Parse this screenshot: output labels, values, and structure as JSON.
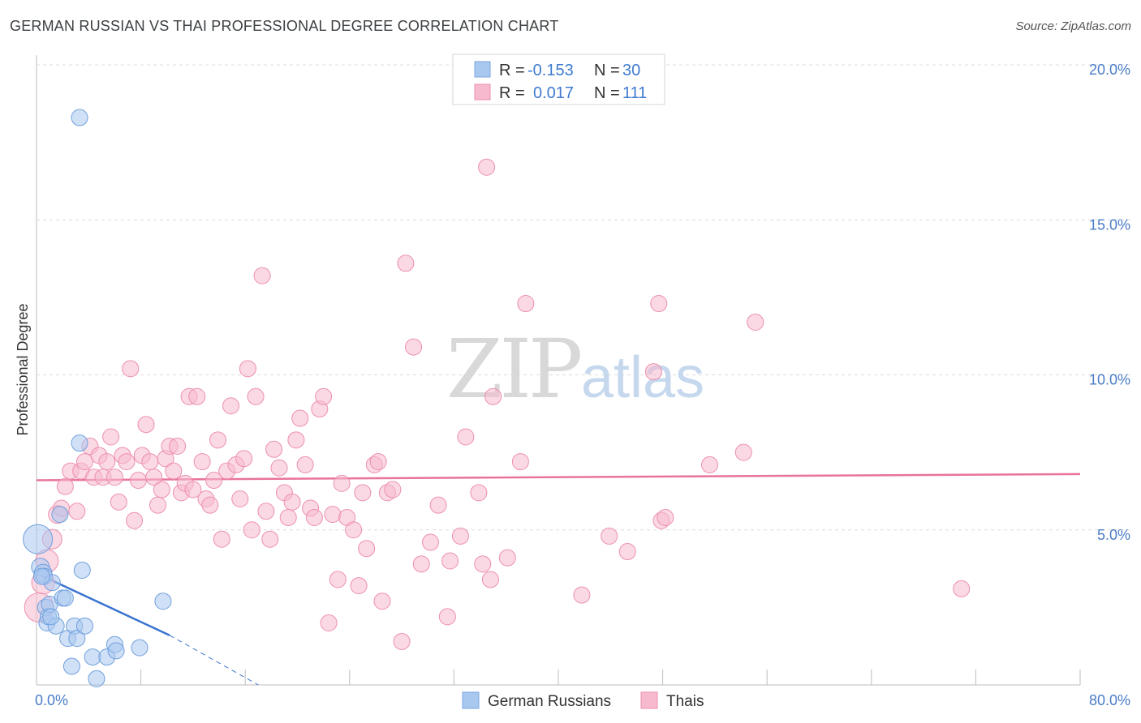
{
  "header": {
    "title": "GERMAN RUSSIAN VS THAI PROFESSIONAL DEGREE CORRELATION CHART",
    "source": "Source: ZipAtlas.com"
  },
  "watermark": {
    "zip": "ZIP",
    "atlas": "atlas"
  },
  "legend": {
    "rows": [
      {
        "r_label": "R =",
        "r_value": "-0.153",
        "n_label": "N =",
        "n_value": "30",
        "color": "#a9c8f0",
        "border": "#7aa7e0"
      },
      {
        "r_label": "R =",
        "r_value": "0.017",
        "n_label": "N =",
        "n_value": "111",
        "color": "#f7b9cd",
        "border": "#ec8fae"
      }
    ]
  },
  "bottom_legend": {
    "items": [
      {
        "label": "German Russians",
        "color": "#a9c8f0",
        "border": "#7aa7e0"
      },
      {
        "label": "Thais",
        "color": "#f7b9cd",
        "border": "#ec8fae"
      }
    ]
  },
  "chart_data": {
    "type": "scatter",
    "xlabel": "",
    "ylabel": "Professional Degree",
    "xlim": [
      0,
      80
    ],
    "ylim": [
      0,
      20
    ],
    "x_tick_labels": [
      {
        "value": 0,
        "label": "0.0%"
      },
      {
        "value": 80,
        "label": "80.0%"
      }
    ],
    "y_tick_labels": [
      {
        "value": 5,
        "label": "5.0%"
      },
      {
        "value": 10,
        "label": "10.0%"
      },
      {
        "value": 15,
        "label": "15.0%"
      },
      {
        "value": 20,
        "label": "20.0%"
      }
    ],
    "x_minor_ticks": [
      0,
      8,
      16,
      24,
      32,
      40,
      48,
      56,
      64,
      72,
      80
    ],
    "series": [
      {
        "name": "German Russians",
        "color": "#a9c8f0",
        "stroke": "#6f9fdc",
        "trend": {
          "x0": 0,
          "y0": 3.6,
          "x1": 10.2,
          "y1": 1.6,
          "dash_to_x": 17,
          "dash_to_y": 0.0,
          "color": "#3a74d0"
        },
        "points": [
          [
            0.1,
            4.7,
            18
          ],
          [
            0.3,
            3.8,
            11
          ],
          [
            0.5,
            3.6,
            11
          ],
          [
            0.6,
            3.5,
            10
          ],
          [
            0.7,
            2.5,
            10
          ],
          [
            0.8,
            2.0,
            10
          ],
          [
            0.9,
            2.2,
            10
          ],
          [
            1.0,
            2.6,
            10
          ],
          [
            1.2,
            3.3,
            10
          ],
          [
            1.5,
            1.9,
            10
          ],
          [
            1.8,
            5.5,
            10
          ],
          [
            2.0,
            2.8,
            10
          ],
          [
            2.2,
            2.8,
            10
          ],
          [
            2.4,
            1.5,
            10
          ],
          [
            2.7,
            0.6,
            10
          ],
          [
            2.9,
            1.9,
            10
          ],
          [
            3.1,
            1.5,
            10
          ],
          [
            3.3,
            7.8,
            10
          ],
          [
            3.5,
            3.7,
            10
          ],
          [
            3.7,
            1.9,
            10
          ],
          [
            3.3,
            18.3,
            10
          ],
          [
            4.3,
            0.9,
            10
          ],
          [
            4.6,
            0.2,
            10
          ],
          [
            5.4,
            0.9,
            10
          ],
          [
            6.0,
            1.3,
            10
          ],
          [
            6.1,
            1.1,
            10
          ],
          [
            7.9,
            1.2,
            10
          ],
          [
            9.7,
            2.7,
            10
          ],
          [
            0.4,
            3.5,
            10
          ],
          [
            1.1,
            2.2,
            10
          ]
        ]
      },
      {
        "name": "Thais",
        "color": "#f7b9cd",
        "stroke": "#ec8fae",
        "trend": {
          "x0": 0,
          "y0": 6.6,
          "x1": 80,
          "y1": 6.8,
          "color": "#e8739b"
        },
        "points": [
          [
            0.2,
            2.5,
            18
          ],
          [
            0.5,
            3.3,
            14
          ],
          [
            0.8,
            4.0,
            14
          ],
          [
            1.2,
            4.7,
            12
          ],
          [
            1.6,
            5.5,
            11
          ],
          [
            1.9,
            5.7,
            10
          ],
          [
            2.2,
            6.4,
            10
          ],
          [
            2.6,
            6.9,
            10
          ],
          [
            3.1,
            5.6,
            10
          ],
          [
            3.4,
            6.9,
            10
          ],
          [
            3.7,
            7.2,
            10
          ],
          [
            4.1,
            7.7,
            10
          ],
          [
            4.4,
            6.7,
            10
          ],
          [
            4.8,
            7.4,
            10
          ],
          [
            5.1,
            6.7,
            10
          ],
          [
            5.4,
            7.2,
            10
          ],
          [
            5.7,
            8.0,
            10
          ],
          [
            6.0,
            6.7,
            10
          ],
          [
            6.3,
            5.9,
            10
          ],
          [
            6.6,
            7.4,
            10
          ],
          [
            6.9,
            7.2,
            10
          ],
          [
            7.2,
            10.2,
            10
          ],
          [
            7.5,
            5.3,
            10
          ],
          [
            7.8,
            6.6,
            10
          ],
          [
            8.1,
            7.4,
            10
          ],
          [
            8.4,
            8.4,
            10
          ],
          [
            8.7,
            7.2,
            10
          ],
          [
            9.0,
            6.7,
            10
          ],
          [
            9.3,
            5.8,
            10
          ],
          [
            9.6,
            6.3,
            10
          ],
          [
            9.9,
            7.3,
            10
          ],
          [
            10.2,
            7.7,
            10
          ],
          [
            10.5,
            6.9,
            10
          ],
          [
            10.8,
            7.7,
            10
          ],
          [
            11.1,
            6.2,
            10
          ],
          [
            11.4,
            6.5,
            10
          ],
          [
            11.7,
            9.3,
            10
          ],
          [
            12.0,
            6.3,
            10
          ],
          [
            12.3,
            9.3,
            10
          ],
          [
            12.7,
            7.2,
            10
          ],
          [
            13.0,
            6.0,
            10
          ],
          [
            13.3,
            5.8,
            10
          ],
          [
            13.6,
            6.6,
            10
          ],
          [
            13.9,
            7.9,
            10
          ],
          [
            14.2,
            4.7,
            10
          ],
          [
            14.6,
            6.9,
            10
          ],
          [
            14.9,
            9.0,
            10
          ],
          [
            15.3,
            7.1,
            10
          ],
          [
            15.6,
            6.0,
            10
          ],
          [
            15.9,
            7.3,
            10
          ],
          [
            16.2,
            10.2,
            10
          ],
          [
            16.5,
            5.0,
            10
          ],
          [
            16.8,
            9.3,
            10
          ],
          [
            17.3,
            13.2,
            10
          ],
          [
            17.6,
            5.6,
            10
          ],
          [
            17.9,
            4.7,
            10
          ],
          [
            18.2,
            7.6,
            10
          ],
          [
            18.6,
            7.0,
            10
          ],
          [
            19.0,
            6.2,
            10
          ],
          [
            19.3,
            5.4,
            10
          ],
          [
            19.6,
            5.9,
            10
          ],
          [
            19.9,
            7.9,
            10
          ],
          [
            20.2,
            8.6,
            10
          ],
          [
            20.6,
            7.1,
            10
          ],
          [
            21.0,
            5.7,
            10
          ],
          [
            21.3,
            5.4,
            10
          ],
          [
            21.7,
            8.9,
            10
          ],
          [
            22.0,
            9.3,
            10
          ],
          [
            22.4,
            2.0,
            10
          ],
          [
            22.7,
            5.5,
            10
          ],
          [
            23.1,
            3.4,
            10
          ],
          [
            23.4,
            6.5,
            10
          ],
          [
            23.8,
            5.4,
            10
          ],
          [
            24.3,
            5.0,
            10
          ],
          [
            24.7,
            3.2,
            10
          ],
          [
            25.0,
            6.2,
            10
          ],
          [
            25.3,
            4.4,
            10
          ],
          [
            25.9,
            7.1,
            10
          ],
          [
            26.2,
            7.2,
            10
          ],
          [
            26.5,
            2.7,
            10
          ],
          [
            26.9,
            6.2,
            10
          ],
          [
            27.3,
            6.3,
            10
          ],
          [
            28.0,
            1.4,
            10
          ],
          [
            28.3,
            13.6,
            10
          ],
          [
            28.9,
            10.9,
            10
          ],
          [
            29.5,
            3.9,
            10
          ],
          [
            30.2,
            4.6,
            10
          ],
          [
            30.8,
            5.8,
            10
          ],
          [
            31.5,
            2.2,
            10
          ],
          [
            31.7,
            4.0,
            10
          ],
          [
            32.5,
            4.8,
            10
          ],
          [
            32.9,
            8.0,
            10
          ],
          [
            33.9,
            6.2,
            10
          ],
          [
            34.2,
            3.9,
            10
          ],
          [
            34.8,
            3.4,
            10
          ],
          [
            34.5,
            16.7,
            10
          ],
          [
            35.0,
            9.3,
            10
          ],
          [
            36.1,
            4.1,
            10
          ],
          [
            37.1,
            7.2,
            10
          ],
          [
            37.5,
            12.3,
            10
          ],
          [
            41.8,
            2.9,
            10
          ],
          [
            43.9,
            4.8,
            10
          ],
          [
            45.3,
            4.3,
            10
          ],
          [
            47.3,
            10.1,
            10
          ],
          [
            47.7,
            12.3,
            10
          ],
          [
            47.9,
            5.3,
            10
          ],
          [
            48.2,
            5.4,
            10
          ],
          [
            51.6,
            7.1,
            10
          ],
          [
            54.2,
            7.5,
            10
          ],
          [
            55.1,
            11.7,
            10
          ],
          [
            70.9,
            3.1,
            10
          ]
        ]
      }
    ]
  }
}
